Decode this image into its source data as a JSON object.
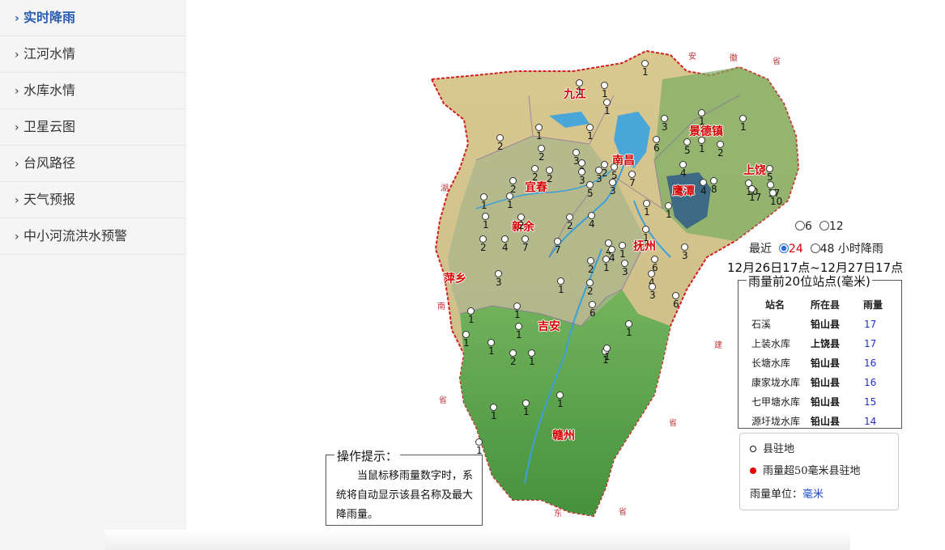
{
  "sidebar": {
    "items": [
      {
        "label": "实时降雨",
        "active": true
      },
      {
        "label": "江河水情"
      },
      {
        "label": "水库水情"
      },
      {
        "label": "卫星云图"
      },
      {
        "label": "台风路径"
      },
      {
        "label": "天气预报"
      },
      {
        "label": "中小河流洪水预警"
      }
    ]
  },
  "map": {
    "cities": [
      "九江",
      "景德镇",
      "南昌",
      "宜春",
      "上饶",
      "鹰潭",
      "新余",
      "抚州",
      "萍乡",
      "吉安",
      "赣州"
    ],
    "neighbor_provinces": [
      "安",
      "徽",
      "省",
      "湖",
      "南",
      "省",
      "建",
      "东",
      "省",
      "省"
    ],
    "station_values": [
      "1",
      "1",
      "1",
      "1",
      "1",
      "1",
      "3",
      "1",
      "1",
      "1",
      "2",
      "2",
      "3",
      "2",
      "3",
      "5",
      "3",
      "7",
      "3",
      "6",
      "5",
      "2",
      "2",
      "2",
      "2",
      "2",
      "5",
      "4",
      "4",
      "8",
      "10",
      "17",
      "17",
      "10",
      "5",
      "1",
      "1",
      "1",
      "2",
      "2",
      "4",
      "7",
      "7",
      "2",
      "4",
      "1",
      "1",
      "1",
      "1",
      "4",
      "1",
      "6",
      "3",
      "3",
      "4",
      "3",
      "6",
      "2",
      "3",
      "2",
      "1",
      "6",
      "4",
      "1",
      "1",
      "1",
      "1",
      "1",
      "2",
      "1",
      "1",
      "1",
      "1",
      "1",
      "1",
      "1",
      "1"
    ],
    "highlight_color": "#2e5c8a"
  },
  "rain_controls": {
    "opt6": "6",
    "opt12": "12",
    "recent": "最近",
    "opt24": "24",
    "opt48": "48",
    "suffix": "小时降雨",
    "range": "12月26日17点~12月27日17点"
  },
  "top20": {
    "title": "雨量前20位站点(毫米)",
    "headers": {
      "name": "站名",
      "county": "所在县",
      "rain": "雨量"
    },
    "rows": [
      {
        "name": "石溪",
        "county": "铅山县",
        "rain": "17"
      },
      {
        "name": "上装水库",
        "county": "上饶县",
        "rain": "17"
      },
      {
        "name": "长塘水库",
        "county": "铅山县",
        "rain": "16"
      },
      {
        "name": "康家垅水库",
        "county": "铅山县",
        "rain": "16"
      },
      {
        "name": "七甲塘水库",
        "county": "铅山县",
        "rain": "15"
      },
      {
        "name": "源圩垅水库",
        "county": "铅山县",
        "rain": "14"
      }
    ]
  },
  "legend": {
    "county_seat": "县驻地",
    "over50": "雨量超50毫米县驻地",
    "unit_label": "雨量单位：",
    "unit_value": "毫米"
  },
  "tips": {
    "title": "操作提示：",
    "body": "当鼠标移雨量数字时，系统将自动显示该县名称及最大降雨量。"
  }
}
